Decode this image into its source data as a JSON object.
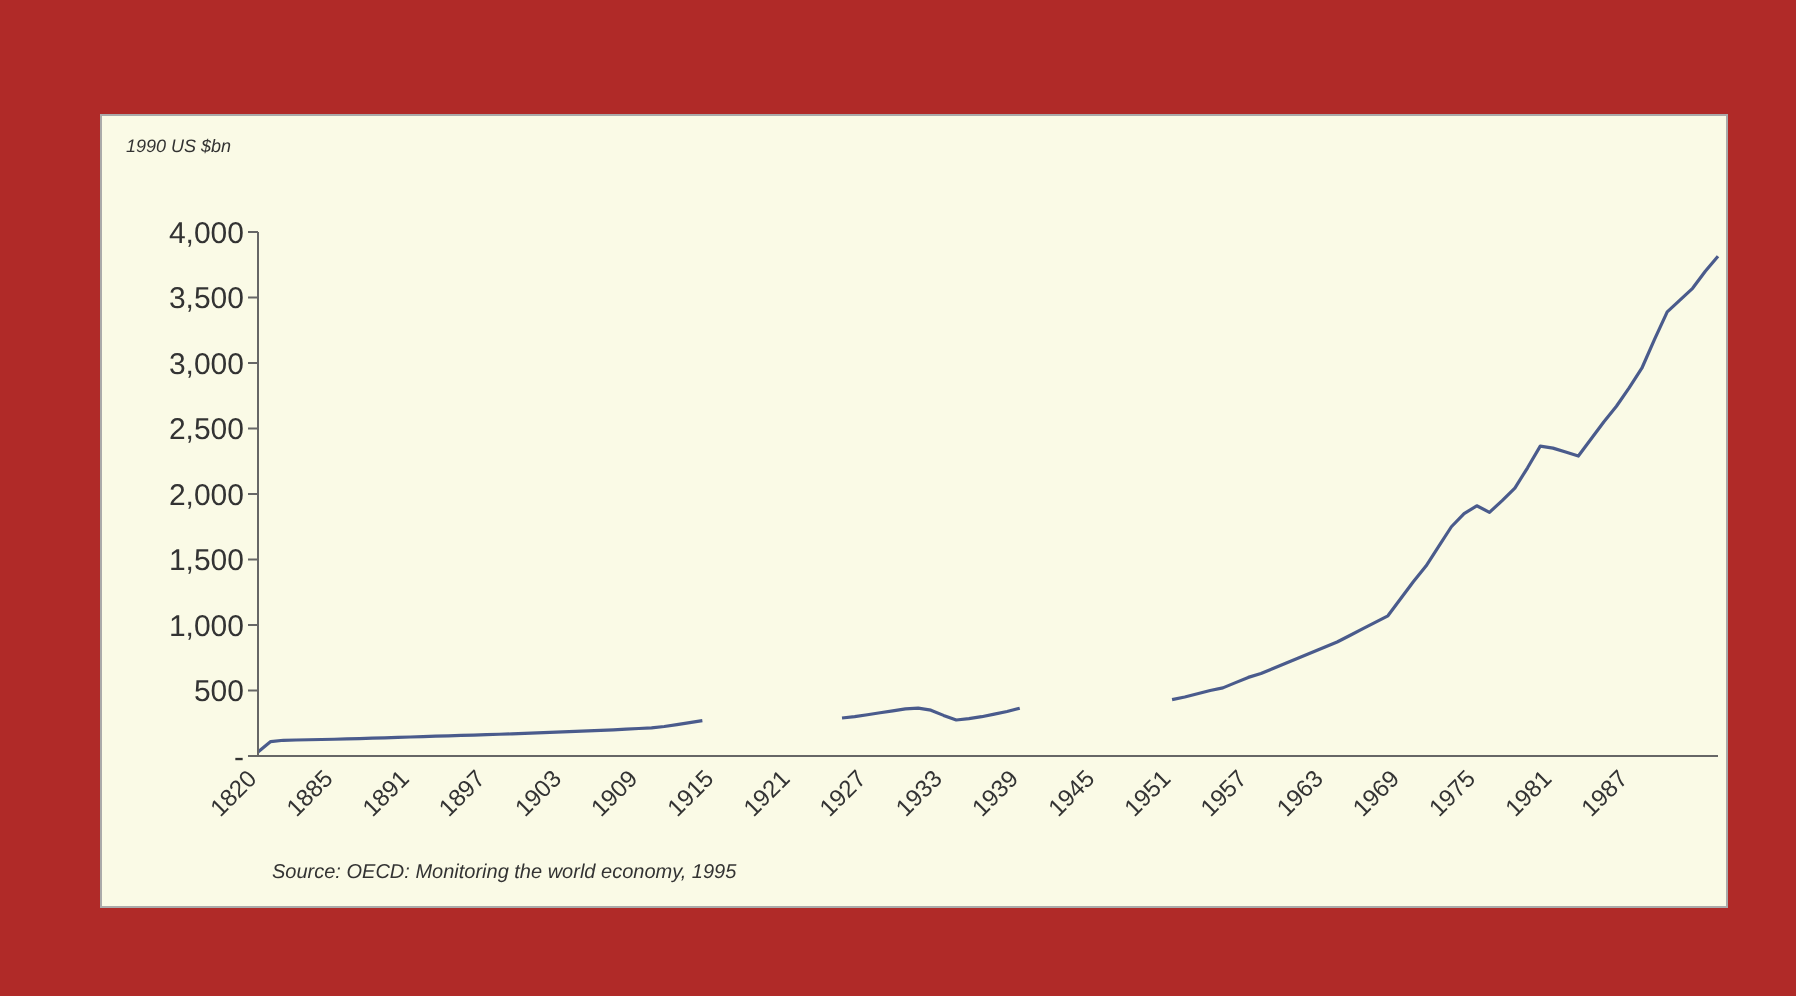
{
  "chart_data": {
    "type": "line",
    "ylabel": "1990 US $bn",
    "annotations": [
      "Source: OECD: Monitoring the world economy, 1995"
    ],
    "categories": [
      "1820",
      null,
      null,
      null,
      null,
      null,
      "1885",
      null,
      null,
      null,
      null,
      null,
      "1891",
      null,
      null,
      null,
      null,
      null,
      "1897",
      null,
      null,
      null,
      null,
      null,
      "1903",
      null,
      null,
      null,
      null,
      null,
      "1909",
      null,
      null,
      null,
      null,
      null,
      "1915",
      null,
      null,
      null,
      null,
      null,
      "1921",
      null,
      null,
      null,
      null,
      null,
      "1927",
      null,
      null,
      null,
      null,
      null,
      "1933",
      null,
      null,
      null,
      null,
      null,
      "1939",
      null,
      null,
      null,
      null,
      null,
      "1945",
      null,
      null,
      null,
      null,
      null,
      "1951",
      null,
      null,
      null,
      null,
      null,
      "1957",
      null,
      null,
      null,
      null,
      null,
      "1963",
      null,
      null,
      null,
      null,
      null,
      "1969",
      null,
      null,
      null,
      null,
      null,
      "1975",
      null,
      null,
      null,
      null,
      null,
      "1981",
      null,
      null,
      null,
      null,
      null,
      "1987",
      null,
      null,
      null,
      null,
      null,
      null,
      null
    ],
    "series": [
      {
        "color": "#4a5b8c",
        "values": [
          30,
          110,
          120,
          122,
          124,
          126,
          128,
          130,
          133,
          136,
          139,
          142,
          145,
          148,
          151,
          154,
          157,
          160,
          163,
          166,
          169,
          172,
          176,
          180,
          184,
          188,
          192,
          196,
          200,
          205,
          210,
          215,
          225,
          240,
          255,
          270,
          null,
          null,
          null,
          null,
          null,
          null,
          null,
          null,
          null,
          null,
          290,
          300,
          315,
          330,
          345,
          360,
          365,
          350,
          310,
          275,
          285,
          300,
          320,
          340,
          365,
          null,
          null,
          null,
          null,
          null,
          null,
          null,
          null,
          null,
          null,
          null,
          430,
          450,
          475,
          500,
          520,
          560,
          600,
          630,
          670,
          710,
          750,
          790,
          830,
          870,
          920,
          970,
          1020,
          1070,
          1200,
          1330,
          1450,
          1600,
          1750,
          1850,
          1910,
          1860,
          1950,
          2045,
          2200,
          2365,
          2350,
          2320,
          2290,
          2420,
          2550,
          2670,
          2810,
          2960,
          3180,
          3390,
          3480,
          3570,
          3700,
          3815
        ]
      }
    ],
    "ylim": [
      0,
      4000
    ],
    "yticks": [
      {
        "value": 0,
        "label": "-"
      },
      500,
      {
        "value": 1000,
        "label": "1,000"
      },
      {
        "value": 1500,
        "label": "1,500"
      },
      {
        "value": 2000,
        "label": "2,000"
      },
      {
        "value": 2500,
        "label": "2,500"
      },
      {
        "value": 3000,
        "label": "3,000"
      },
      {
        "value": 3500,
        "label": "3,500"
      },
      {
        "value": 4000,
        "label": "4,000"
      }
    ],
    "grid": false,
    "legend": false,
    "marker": "none",
    "line_style": "solid"
  }
}
